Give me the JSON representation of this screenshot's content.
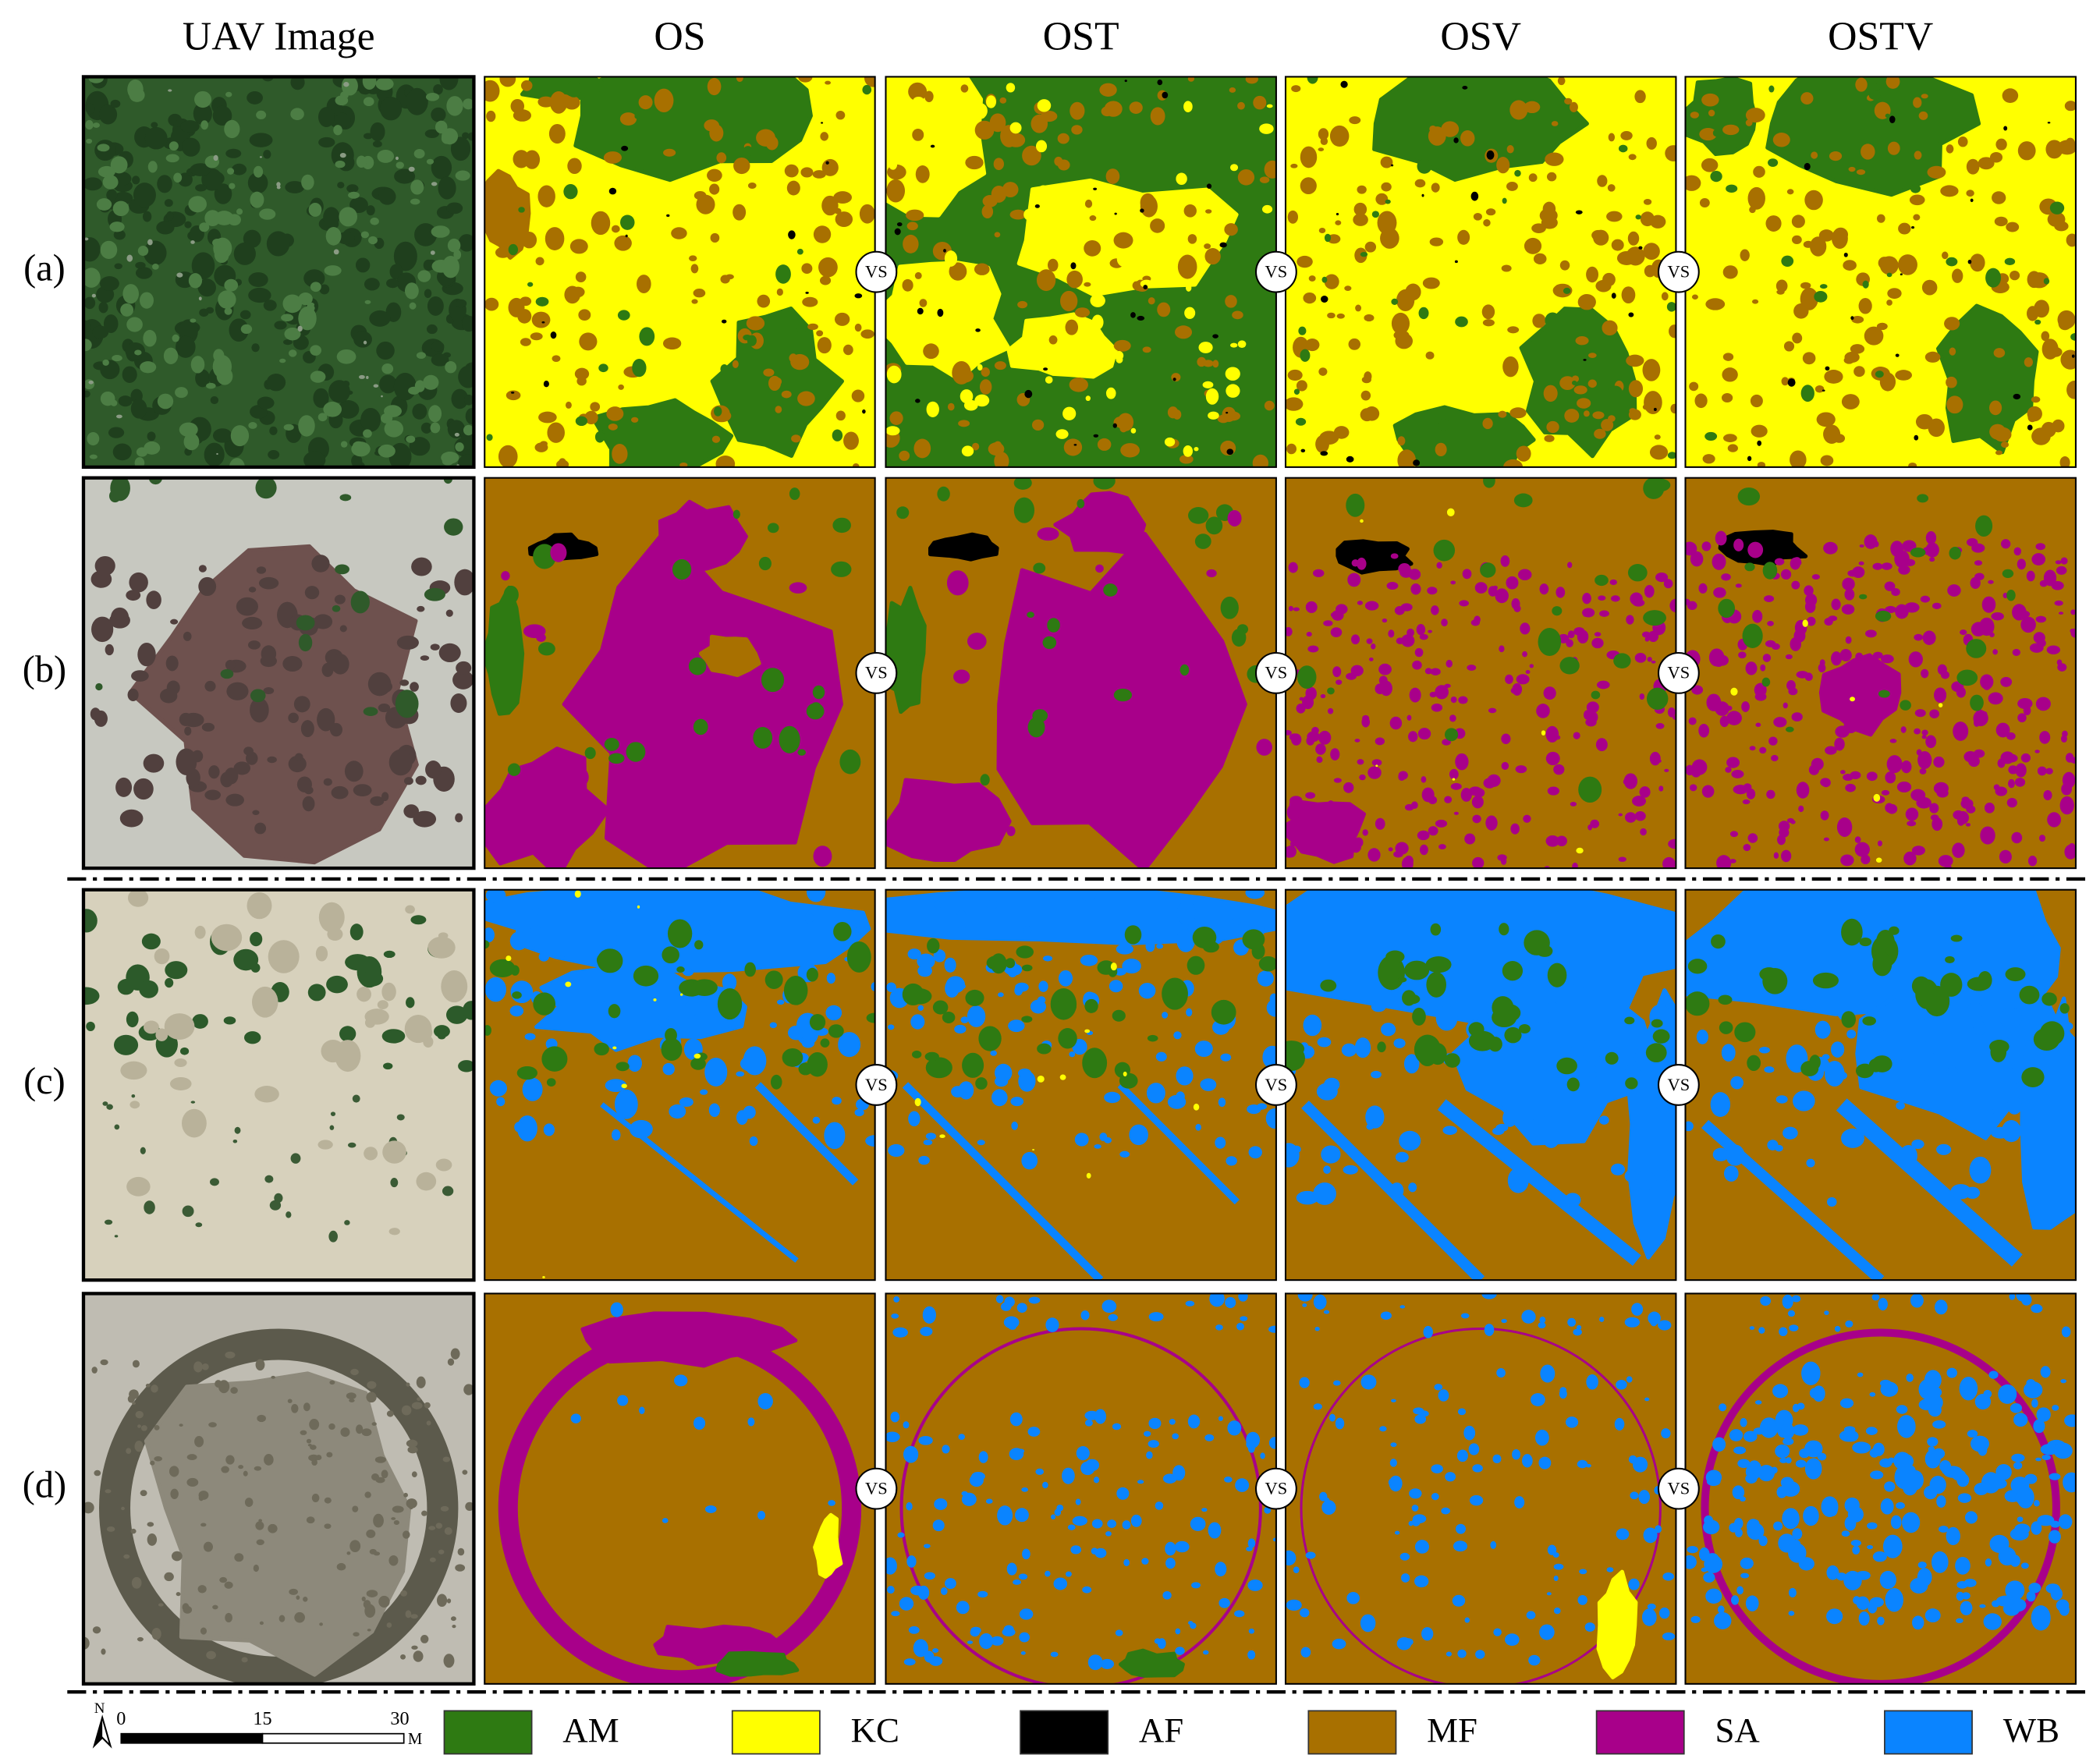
{
  "columns": [
    "UAV Image",
    "OS",
    "OST",
    "OSV",
    "OSTV"
  ],
  "rows": [
    "(a)",
    "(b)",
    "(c)",
    "(d)"
  ],
  "vs": "VS",
  "legend": [
    {
      "name": "AM",
      "color": "#2e7a12"
    },
    {
      "name": "KC",
      "color": "#ffff00"
    },
    {
      "name": "AF",
      "color": "#000000"
    },
    {
      "name": "MF",
      "color": "#a87000"
    },
    {
      "name": "SA",
      "color": "#a8008a"
    },
    {
      "name": "WB",
      "color": "#0a84ff"
    }
  ],
  "scale_bar": {
    "north": "N",
    "labels": [
      "0",
      "15",
      "30"
    ],
    "unit": "M"
  }
}
